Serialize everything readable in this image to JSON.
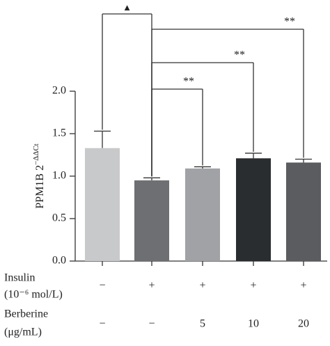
{
  "chart_data": {
    "type": "bar",
    "y_label": "PPM1B 2",
    "y_label_sup": "−ΔΔCt",
    "values": [
      1.33,
      0.95,
      1.09,
      1.21,
      1.16
    ],
    "errors": [
      0.2,
      0.03,
      0.02,
      0.06,
      0.04
    ],
    "colors": [
      "#c8c9ca",
      "#6d6f72",
      "#a0a2a5",
      "#2a2d30",
      "#5a5c5f"
    ],
    "ylim": [
      0,
      2.0
    ],
    "yticks": [
      {
        "value": 0,
        "label": "0.0"
      },
      0.5,
      {
        "value": 1,
        "label": "1.0"
      },
      1.5,
      {
        "value": 2,
        "label": "2.0"
      }
    ],
    "annotations": [
      {
        "text": "▲",
        "from": 0,
        "to": 1
      },
      {
        "text": "**",
        "from": 1,
        "to": 2
      },
      {
        "text": "**",
        "from": 1,
        "to": 3
      },
      {
        "text": "**",
        "from": 1,
        "to": 4
      }
    ],
    "conditions": [
      {
        "label": [
          "Insulin",
          "(10⁻⁶ mol/L)"
        ],
        "values": [
          "−",
          "+",
          "+",
          "+",
          "+"
        ]
      },
      {
        "label": [
          "Berberine",
          "(μg/mL)"
        ],
        "values": [
          "−",
          "−",
          "5",
          "10",
          "20"
        ]
      }
    ]
  }
}
